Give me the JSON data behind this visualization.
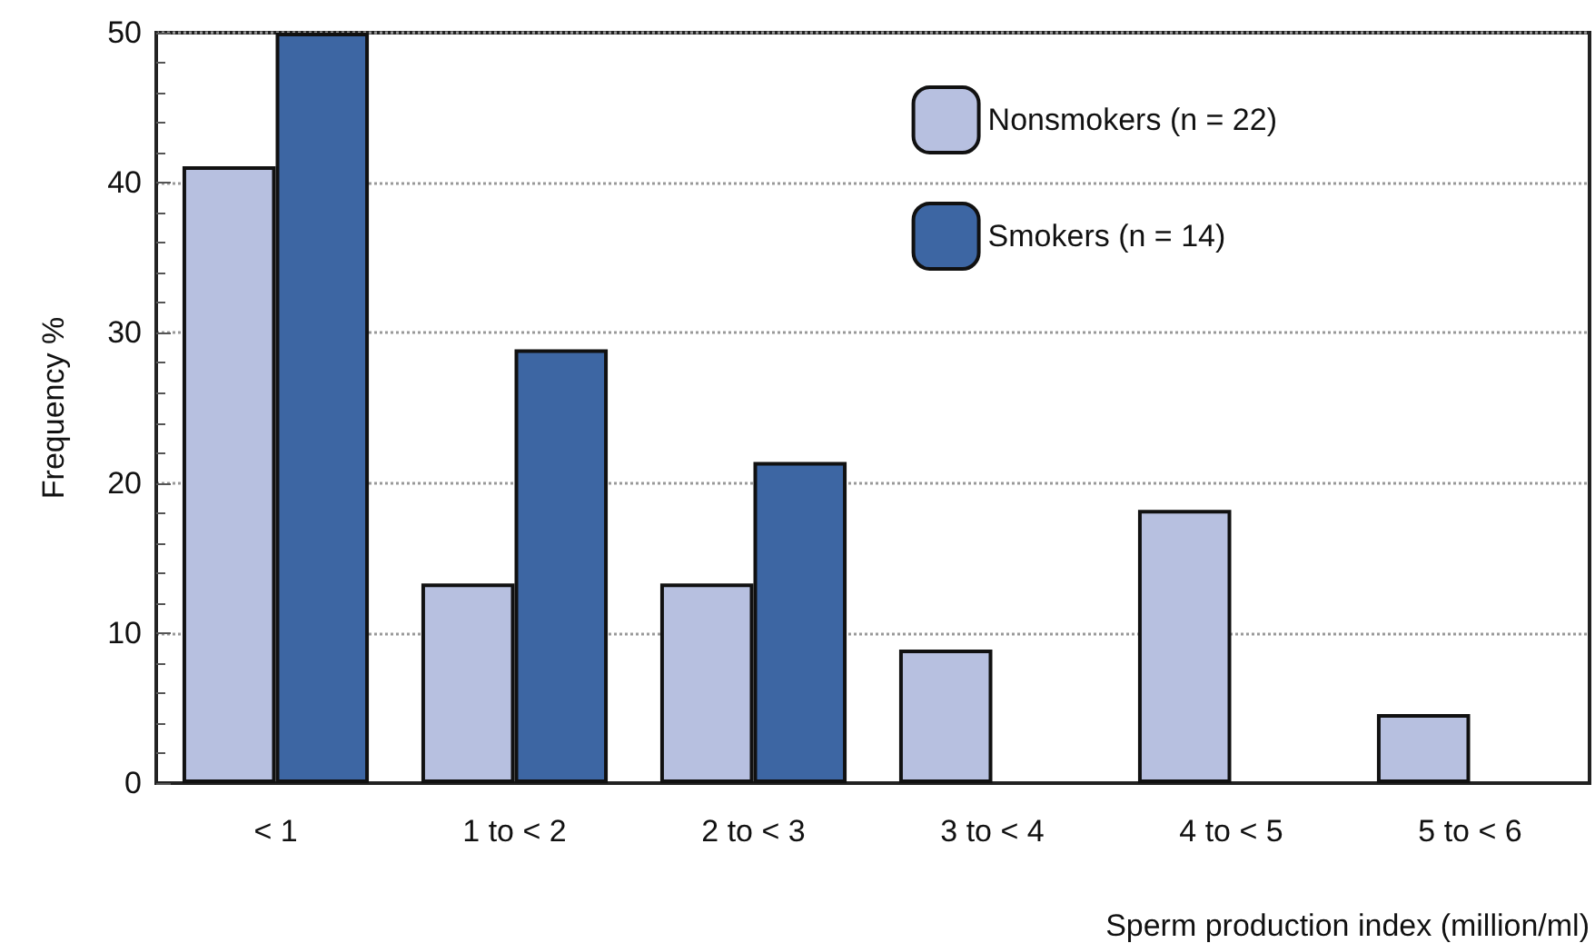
{
  "chart_data": {
    "type": "bar",
    "xlabel": "Sperm production index (million/ml)",
    "ylabel": "Frequency %",
    "categories": [
      "< 1",
      "1 to < 2",
      "2 to < 3",
      "3 to < 4",
      "4 to < 5",
      "5 to < 6"
    ],
    "series": [
      {
        "name": "Nonsmokers (n = 22)",
        "color": "#b7c0e0",
        "values": [
          41.1,
          13.3,
          13.3,
          8.9,
          18.2,
          4.6
        ]
      },
      {
        "name": "Smokers (n = 14)",
        "color": "#3d66a3",
        "values": [
          50,
          28.9,
          21.4,
          null,
          null,
          null
        ]
      }
    ],
    "ylim": [
      0,
      50
    ],
    "yticks": [
      0,
      10,
      20,
      30,
      40,
      50
    ],
    "grid": "y",
    "legend": "top right"
  }
}
